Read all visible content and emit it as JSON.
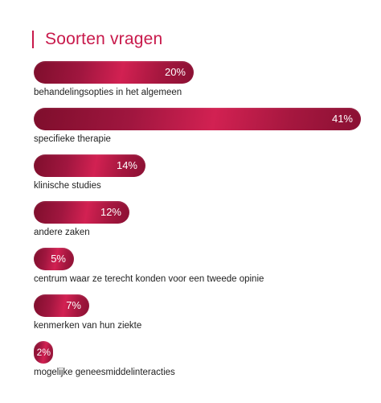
{
  "chart_data": {
    "type": "bar",
    "orientation": "horizontal",
    "title": "Soorten vragen",
    "categories": [
      "behandelingsopties in het algemeen",
      "specifieke therapie",
      "klinische studies",
      "andere zaken",
      "centrum waar ze terecht konden voor een tweede opinie",
      "kenmerken van hun ziekte",
      "mogelijke geneesmiddelinteracties"
    ],
    "values": [
      20,
      41,
      14,
      12,
      5,
      7,
      2
    ],
    "value_labels": [
      "20%",
      "41%",
      "14%",
      "12%",
      "5%",
      "7%",
      "2%"
    ],
    "unit": "%",
    "xlim": [
      0,
      41
    ],
    "grid": false,
    "legend": "none"
  },
  "colors": {
    "accent": "#c8194b",
    "bar_dark": "#7e0e2c",
    "bar_light": "#d22152",
    "label_text": "#222222"
  }
}
